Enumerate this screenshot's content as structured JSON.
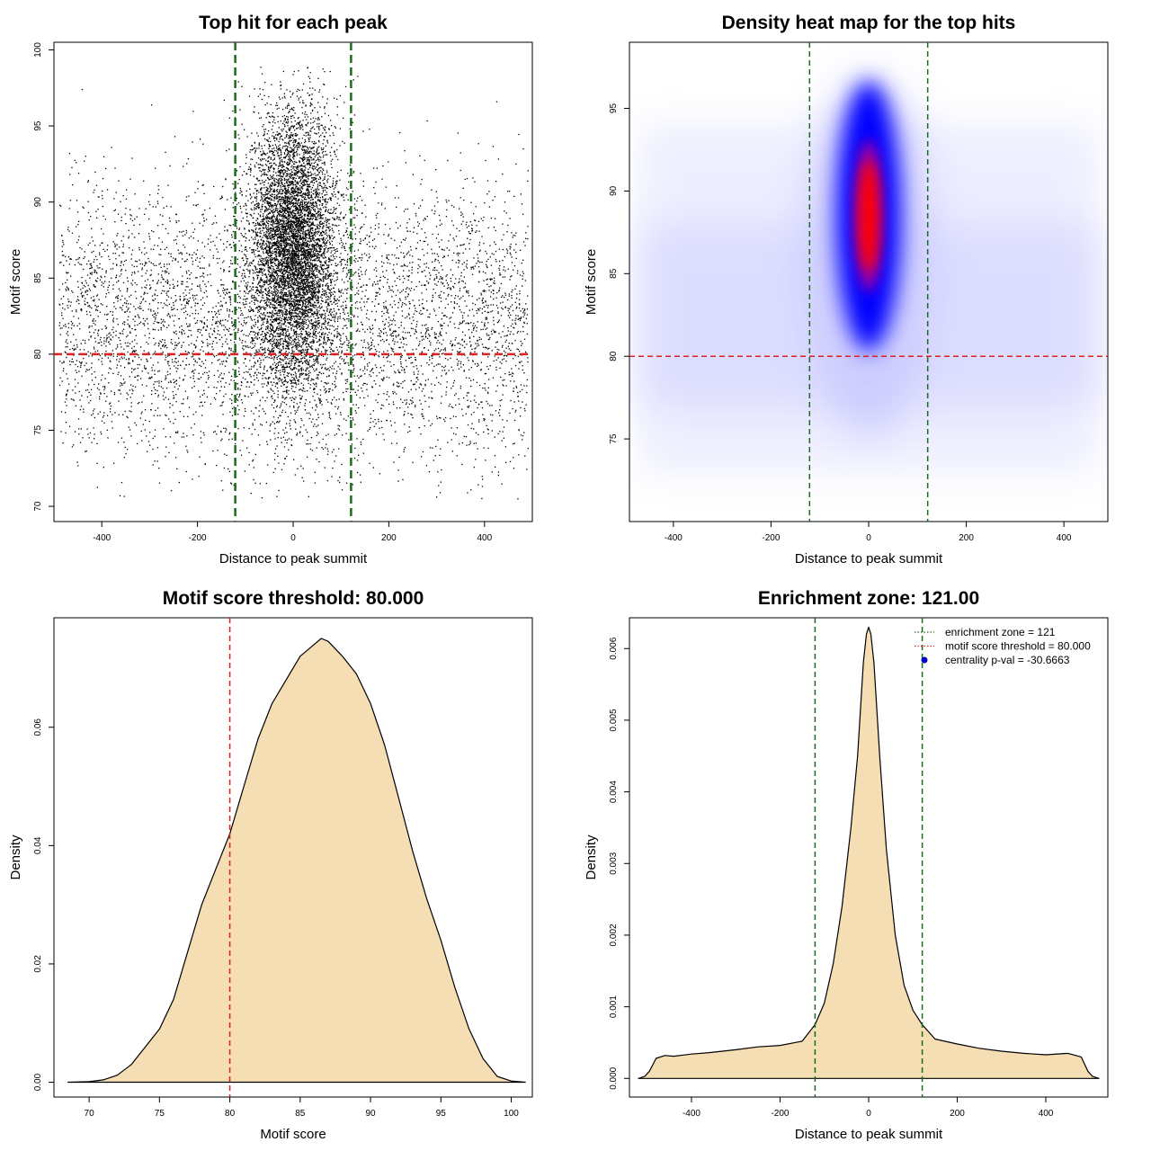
{
  "chart_data": [
    {
      "type": "scatter",
      "title": "Top hit for each peak",
      "xlabel": "Distance to peak summit",
      "ylabel": "Motif score",
      "xlim": [
        -500,
        500
      ],
      "ylim": [
        69,
        100.5
      ],
      "xticks": [
        -400,
        -200,
        0,
        200,
        400
      ],
      "yticks": [
        70,
        75,
        80,
        85,
        90,
        95,
        100
      ],
      "grid": false,
      "point_color": "#000000",
      "reference_lines": {
        "vertical_x": [
          -121,
          121
        ],
        "vertical_color": "#1e6b1e",
        "horizontal_y": 80,
        "horizontal_color": "#dd2222"
      },
      "point_groups": [
        {
          "x": [
            -490,
            490
          ],
          "y_mean": 82,
          "y_sd": 4.5,
          "n": 5200
        },
        {
          "x_mean": 0,
          "x_sd": 45,
          "y_mean": 87,
          "y_sd": 4.5,
          "n": 7000
        }
      ]
    },
    {
      "type": "heatmap",
      "title": "Density heat map for the top hits",
      "xlabel": "Distance to peak summit",
      "ylabel": "Motif score",
      "xlim": [
        -490,
        490
      ],
      "ylim": [
        70,
        99
      ],
      "xticks": [
        -400,
        -200,
        0,
        200,
        400
      ],
      "yticks": [
        75,
        80,
        85,
        90,
        95
      ],
      "grid": false,
      "colors": [
        "#ffffff",
        "#0000ff",
        "#ff0000"
      ],
      "hotspot": {
        "x": 0,
        "y": 88.5
      },
      "reference_lines": {
        "vertical_x": [
          -121,
          121
        ],
        "vertical_color": "#1e6b1e",
        "horizontal_y": 80,
        "horizontal_color": "#dd2222"
      }
    },
    {
      "type": "area",
      "title": "Motif score threshold: 80.000",
      "xlabel": "Motif score",
      "ylabel": "Density",
      "xlim": [
        67.5,
        101.5
      ],
      "ylim": [
        -0.0025,
        0.0785
      ],
      "xticks": [
        70,
        75,
        80,
        85,
        90,
        95,
        100
      ],
      "yticks": [
        0.0,
        0.02,
        0.04,
        0.06
      ],
      "ytick_labels": [
        "0.00",
        "0.02",
        "0.04",
        "0.06"
      ],
      "grid": false,
      "fill_color": "#f5deb3",
      "x": [
        68.5,
        70,
        71,
        72,
        73,
        74,
        75,
        76,
        77,
        78,
        79,
        80,
        81,
        82,
        83,
        84,
        85,
        86,
        86.5,
        87,
        88,
        89,
        90,
        91,
        92,
        93,
        94,
        95,
        96,
        97,
        98,
        99,
        100,
        101
      ],
      "y": [
        0.0,
        0.0001,
        0.0004,
        0.0012,
        0.003,
        0.006,
        0.009,
        0.014,
        0.022,
        0.03,
        0.036,
        0.042,
        0.05,
        0.058,
        0.064,
        0.068,
        0.072,
        0.074,
        0.075,
        0.0745,
        0.072,
        0.069,
        0.064,
        0.057,
        0.048,
        0.039,
        0.031,
        0.024,
        0.016,
        0.009,
        0.004,
        0.001,
        0.0002,
        0.0
      ],
      "reference_lines": {
        "vertical_x": [
          80
        ],
        "vertical_color": "#dd2222"
      }
    },
    {
      "type": "area",
      "title": "Enrichment zone: 121.00",
      "xlabel": "Distance to peak summit",
      "ylabel": "Density",
      "xlim": [
        -540,
        540
      ],
      "ylim": [
        -0.00026,
        0.00643
      ],
      "xticks": [
        -400,
        -200,
        0,
        200,
        400
      ],
      "yticks": [
        0.0,
        0.001,
        0.002,
        0.003,
        0.004,
        0.005,
        0.006
      ],
      "ytick_labels": [
        "0.000",
        "0.001",
        "0.002",
        "0.003",
        "0.004",
        "0.005",
        "0.006"
      ],
      "grid": false,
      "fill_color": "#f5deb3",
      "x": [
        -520,
        -505,
        -495,
        -480,
        -460,
        -440,
        -400,
        -360,
        -300,
        -250,
        -200,
        -150,
        -121,
        -100,
        -80,
        -60,
        -40,
        -25,
        -12,
        -5,
        0,
        5,
        12,
        25,
        40,
        60,
        80,
        100,
        121,
        150,
        200,
        250,
        300,
        350,
        400,
        450,
        480,
        495,
        505,
        520
      ],
      "y": [
        0.0,
        3e-05,
        0.0001,
        0.00028,
        0.00032,
        0.00031,
        0.00034,
        0.00036,
        0.0004,
        0.00044,
        0.00046,
        0.00052,
        0.00075,
        0.00105,
        0.0016,
        0.0024,
        0.0035,
        0.0045,
        0.0058,
        0.0062,
        0.0063,
        0.0062,
        0.0058,
        0.0045,
        0.0032,
        0.002,
        0.0013,
        0.00095,
        0.00075,
        0.00055,
        0.00048,
        0.00042,
        0.00038,
        0.00035,
        0.00033,
        0.00035,
        0.0003,
        0.0001,
        3e-05,
        0.0
      ],
      "reference_lines": {
        "vertical_x": [
          -121,
          121
        ],
        "vertical_color": "#1e6b1e"
      },
      "legend": {
        "placement": "top-right",
        "entries": [
          {
            "label": "enrichment zone = 121",
            "color": "#1e6b1e",
            "style": "dotted-line"
          },
          {
            "label": "motif score threshold = 80.000",
            "color": "#dd2222",
            "style": "dotted-line"
          },
          {
            "label": "centrality p-val = -30.6663",
            "color": "#0000cc",
            "style": "dot"
          }
        ]
      }
    }
  ]
}
